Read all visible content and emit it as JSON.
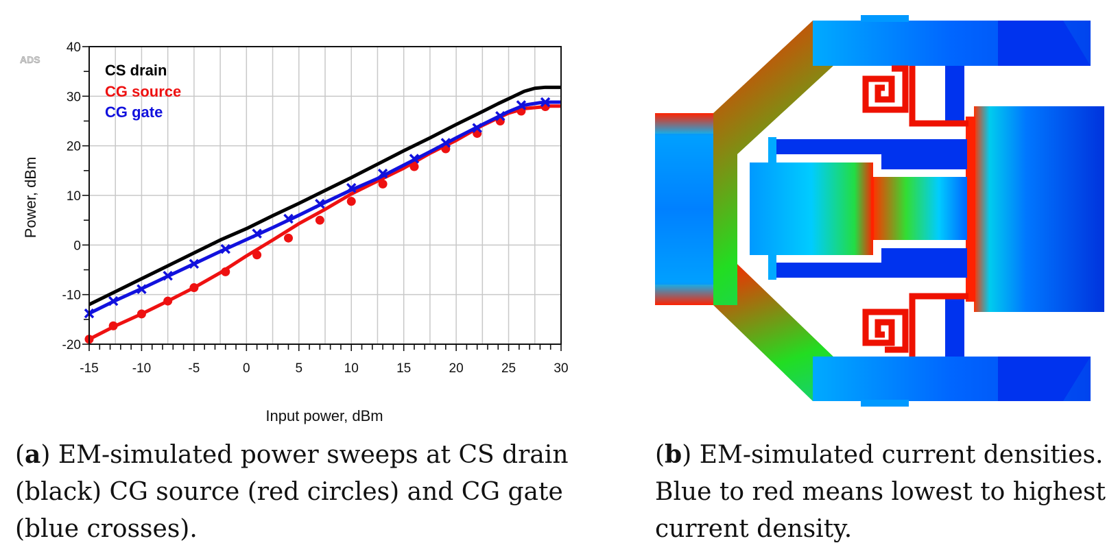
{
  "colors": {
    "cs_drain": "#000000",
    "cg_source": "#ee1111",
    "cg_gate": "#1111dd",
    "grid": "#c8c8c8"
  },
  "chart_data": {
    "type": "line",
    "watermark": "ADS",
    "xlabel": "Input power, dBm",
    "ylabel": "Power, dBm",
    "xlim": [
      -15,
      30
    ],
    "ylim": [
      -20,
      40
    ],
    "xticks": [
      -15,
      -10,
      -5,
      0,
      5,
      10,
      15,
      20,
      25,
      30
    ],
    "yticks": [
      -20,
      -10,
      0,
      10,
      20,
      30,
      40
    ],
    "legend_position": "top-left",
    "series": [
      {
        "name": "CS drain",
        "color": "#000000",
        "marker": "none",
        "x": [
          -15,
          -12.5,
          -10,
          -7.5,
          -5,
          -2.5,
          0,
          2.5,
          5,
          7.5,
          10,
          12.5,
          15,
          17.5,
          20,
          22.5,
          24,
          25.5,
          26.5,
          27.5,
          28.5,
          30
        ],
        "y": [
          -12,
          -9.4,
          -6.8,
          -4.2,
          -1.6,
          1.0,
          3.3,
          5.9,
          8.4,
          11.0,
          13.6,
          16.3,
          19.0,
          21.6,
          24.3,
          26.9,
          28.5,
          30.0,
          31.0,
          31.6,
          31.8,
          31.8
        ]
      },
      {
        "name": "CG source",
        "color": "#ee1111",
        "marker": "circle",
        "x": [
          -15,
          -12.5,
          -10,
          -7.5,
          -5,
          -2.5,
          0,
          2.5,
          5,
          7.5,
          10,
          12.5,
          15,
          17.5,
          20,
          22.5,
          25,
          26.5,
          28,
          29,
          30
        ],
        "y": [
          -19.0,
          -16.3,
          -13.9,
          -11.3,
          -8.6,
          -5.6,
          -2.2,
          1.0,
          4.3,
          7.2,
          10.3,
          12.9,
          15.5,
          18.5,
          21.1,
          24.1,
          26.6,
          27.5,
          27.8,
          28.0,
          28.0
        ],
        "marker_x": [
          -15,
          -12.7,
          -10,
          -7.5,
          -5,
          -2,
          1,
          4,
          7,
          10,
          13,
          16,
          19,
          22,
          24.2,
          26.2,
          28.5
        ],
        "marker_y": [
          -19.0,
          -16.3,
          -13.9,
          -11.3,
          -8.6,
          -5.4,
          -2.0,
          1.4,
          5.0,
          8.8,
          12.3,
          15.8,
          19.4,
          22.5,
          25.0,
          27.0,
          27.9
        ]
      },
      {
        "name": "CG gate",
        "color": "#1111dd",
        "marker": "x",
        "x": [
          -15,
          -12.5,
          -10,
          -7.5,
          -5,
          -2.5,
          0,
          2.5,
          5,
          7.5,
          10,
          12.5,
          15,
          17.5,
          20,
          22.5,
          25,
          26.5,
          28,
          29,
          30
        ],
        "y": [
          -13.8,
          -11.2,
          -8.8,
          -6.3,
          -3.8,
          -1.3,
          1.1,
          3.5,
          6.0,
          8.6,
          11.1,
          13.4,
          16.1,
          18.8,
          21.6,
          24.3,
          26.9,
          28.2,
          28.7,
          28.8,
          28.8
        ],
        "marker_x": [
          -15,
          -12.7,
          -10,
          -7.5,
          -5,
          -2,
          1,
          4,
          7,
          10,
          13,
          16,
          19,
          22,
          24.2,
          26.2,
          28.5
        ],
        "marker_y": [
          -13.8,
          -11.3,
          -8.9,
          -6.2,
          -3.8,
          -0.8,
          2.3,
          5.3,
          8.3,
          11.5,
          14.4,
          17.4,
          20.6,
          23.6,
          26.0,
          28.2,
          28.8
        ]
      }
    ]
  },
  "captions": {
    "a_letter": "a",
    "a_text": " EM-simulated power sweeps at CS drain (black) CG source (red circles) and CG gate (blue crosses).",
    "b_letter": "b",
    "b_text": " EM-simulated current densities. Blue to red means lowest to highest current density."
  }
}
